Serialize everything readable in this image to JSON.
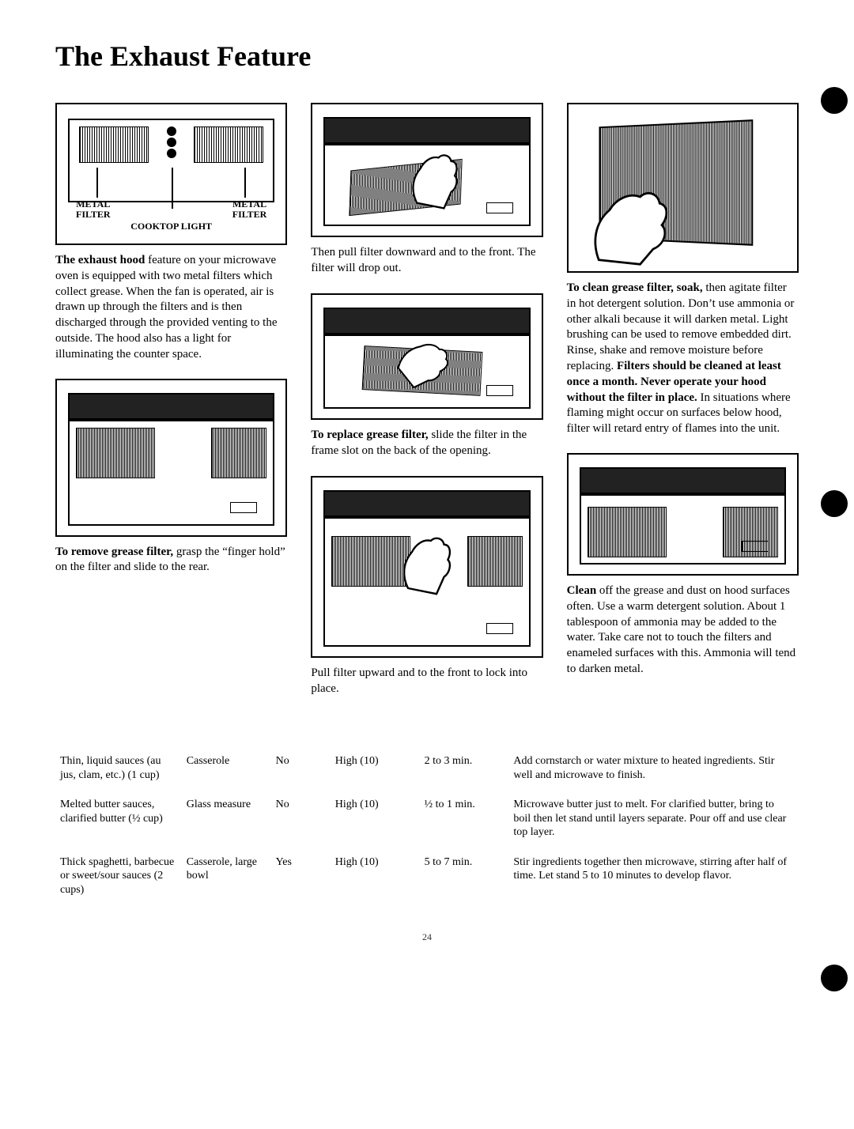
{
  "title": "The Exhaust Feature",
  "figureLabels": {
    "metal_filter": "METAL\nFILTER",
    "cooktop_light": "COOKTOP LIGHT"
  },
  "col1": {
    "p1": "The exhaust hood feature on your microwave oven is equipped with two metal filters which collect grease. When the fan is operated, air is drawn up through the filters and is then discharged through the provided venting to the outside. The hood also has a light for illuminating the counter space.",
    "p1_lead": "The exhaust hood",
    "p2": " grasp the “finger hold” on the filter and slide to the rear.",
    "p2_lead": "To remove grease filter,"
  },
  "col2": {
    "c1": "Then pull filter downward and to the front. The filter will drop out.",
    "c2_lead": "To replace grease filter,",
    "c2": " slide the filter in the frame slot on the back of the opening.",
    "c3": "Pull filter upward and to the front to lock into place."
  },
  "col3": {
    "p1_lead": "To clean grease filter, soak,",
    "p1": " then agitate filter in hot detergent solution. Don’t use ammonia or other alkali because it will darken metal. Light brushing can be used to remove embedded dirt. Rinse, shake and remove moisture before replacing. ",
    "p1_bold2": "Filters should be cleaned at least once a month. Never operate your hood without the filter in place.",
    "p1_tail": " In situations where flaming might occur on surfaces below hood, filter will retard entry of flames into the unit.",
    "p2_lead": "Clean",
    "p2": " off the grease and dust on hood surfaces often. Use a warm detergent solution. About 1 tablespoon of ammonia may be added to the water. Take care not to touch the filters and enameled surfaces with this. Ammonia will tend to darken metal."
  },
  "table": {
    "hdr": [
      "",
      "",
      "",
      "",
      "",
      ""
    ],
    "rows": [
      {
        "a": "Thin, liquid sauces (au jus, clam, etc.) (1 cup)",
        "b": "Casserole",
        "c": "No",
        "d": "High (10)",
        "e": "2 to 3 min.",
        "f": "Add cornstarch or water mixture to heated ingredients. Stir well and microwave to finish."
      },
      {
        "a": "Melted butter sauces, clarified butter (½ cup)",
        "b": "Glass measure",
        "c": "No",
        "d": "High (10)",
        "e": "½ to 1 min.",
        "f": "Microwave butter just to melt. For clarified butter, bring to boil then let stand until layers separate. Pour off and use clear top layer."
      },
      {
        "a": "Thick spaghetti, barbecue or sweet/sour sauces (2 cups)",
        "b": "Casserole, large bowl",
        "c": "Yes",
        "d": "High (10)",
        "e": "5 to 7 min.",
        "f": "Stir ingredients together then microwave, stirring after half of time. Let stand 5 to 10 minutes to develop flavor."
      }
    ]
  },
  "pagenum": "24"
}
